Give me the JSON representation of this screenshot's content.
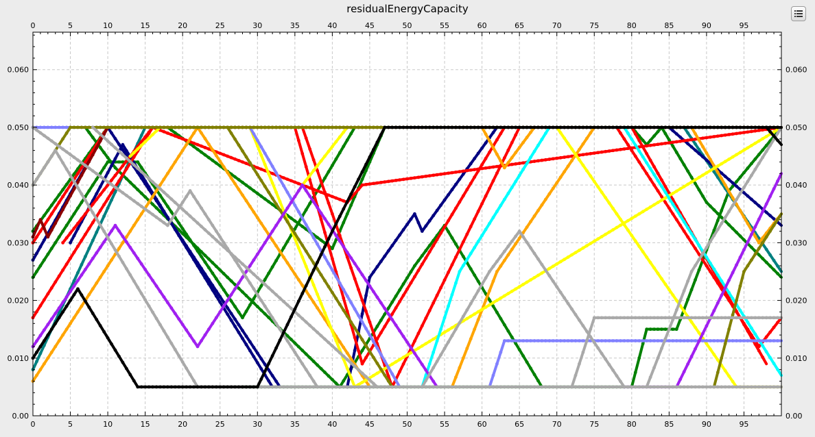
{
  "chart_data": {
    "type": "line",
    "title": "residualEnergyCapacity",
    "xlabel": "",
    "ylabel": "",
    "xlim": [
      0,
      100
    ],
    "ylim": [
      0,
      0.0665
    ],
    "x_ticks": [
      "0",
      "5",
      "10",
      "15",
      "20",
      "25",
      "30",
      "35",
      "40",
      "45",
      "50",
      "55",
      "60",
      "65",
      "70",
      "75",
      "80",
      "85",
      "90",
      "95"
    ],
    "y_ticks": [
      "0.00",
      "0.010",
      "0.020",
      "0.030",
      "0.040",
      "0.050",
      "0.060"
    ],
    "grid": true,
    "legend": "none",
    "series": [
      {
        "color": "#008000",
        "x": [
          0,
          10,
          100
        ],
        "y": [
          0.032,
          0.05,
          0.05
        ]
      },
      {
        "color": "#008000",
        "x": [
          0,
          10,
          14,
          28,
          43,
          100
        ],
        "y": [
          0.024,
          0.044,
          0.044,
          0.017,
          0.05,
          0.05
        ]
      },
      {
        "color": "#008000",
        "x": [
          7,
          11,
          41,
          51,
          55,
          68
        ],
        "y": [
          0.05,
          0.043,
          0.005,
          0.026,
          0.033,
          0.005
        ]
      },
      {
        "color": "#008000",
        "x": [
          12,
          18,
          40,
          47,
          100
        ],
        "y": [
          0.05,
          0.05,
          0.029,
          0.05,
          0.05
        ]
      },
      {
        "color": "#008000",
        "x": [
          28,
          75,
          80,
          82,
          86,
          93,
          100
        ],
        "y": [
          0.005,
          0.005,
          0.005,
          0.015,
          0.015,
          0.039,
          0.05
        ]
      },
      {
        "color": "#008000",
        "x": [
          80,
          82,
          84,
          90,
          100
        ],
        "y": [
          0.05,
          0.047,
          0.05,
          0.037,
          0.024
        ]
      },
      {
        "color": "#008080",
        "x": [
          0,
          15,
          17,
          100
        ],
        "y": [
          0.008,
          0.05,
          0.05,
          0.05
        ]
      },
      {
        "color": "#008080",
        "x": [
          84,
          87,
          100
        ],
        "y": [
          0.05,
          0.05,
          0.025
        ]
      },
      {
        "color": "#000080",
        "x": [
          0,
          10,
          33
        ],
        "y": [
          0.027,
          0.05,
          0.005
        ]
      },
      {
        "color": "#000080",
        "x": [
          5,
          12,
          32
        ],
        "y": [
          0.03,
          0.047,
          0.005
        ]
      },
      {
        "color": "#000080",
        "x": [
          42,
          45,
          51,
          52,
          62,
          100
        ],
        "y": [
          0.005,
          0.024,
          0.035,
          0.032,
          0.05,
          0.05
        ]
      },
      {
        "color": "#000080",
        "x": [
          85,
          100
        ],
        "y": [
          0.05,
          0.033
        ]
      },
      {
        "color": "#ff0000",
        "x": [
          0,
          16,
          42,
          44,
          100
        ],
        "y": [
          0.017,
          0.05,
          0.037,
          0.04,
          0.05
        ]
      },
      {
        "color": "#ff0000",
        "x": [
          4,
          16,
          100
        ],
        "y": [
          0.03,
          0.05,
          0.05
        ]
      },
      {
        "color": "#ff0000",
        "x": [
          0,
          10,
          20,
          36,
          100
        ],
        "y": [
          0.03,
          0.05,
          0.05,
          0.05,
          0.05
        ]
      },
      {
        "color": "#ff0000",
        "x": [
          36,
          48,
          65,
          100
        ],
        "y": [
          0.05,
          0.005,
          0.05,
          0.05
        ]
      },
      {
        "color": "#ff0000",
        "x": [
          35,
          44,
          63,
          100
        ],
        "y": [
          0.05,
          0.009,
          0.05,
          0.05
        ]
      },
      {
        "color": "#ff0000",
        "x": [
          78,
          97,
          100
        ],
        "y": [
          0.05,
          0.012,
          0.017
        ]
      },
      {
        "color": "#ff0000",
        "x": [
          80,
          98
        ],
        "y": [
          0.05,
          0.009
        ]
      },
      {
        "color": "#ffa500",
        "x": [
          0,
          22,
          100
        ],
        "y": [
          0.006,
          0.05,
          0.05
        ]
      },
      {
        "color": "#ffa500",
        "x": [
          22,
          45
        ],
        "y": [
          0.05,
          0.005
        ]
      },
      {
        "color": "#ffa500",
        "x": [
          56,
          62,
          75,
          100
        ],
        "y": [
          0.005,
          0.025,
          0.05,
          0.05
        ]
      },
      {
        "color": "#ffa500",
        "x": [
          60,
          63,
          67,
          100
        ],
        "y": [
          0.05,
          0.043,
          0.05,
          0.05
        ]
      },
      {
        "color": "#ffa500",
        "x": [
          80,
          88,
          97,
          100
        ],
        "y": [
          0.05,
          0.05,
          0.03,
          0.035
        ]
      },
      {
        "color": "#ffff00",
        "x": [
          13,
          17,
          100
        ],
        "y": [
          0.045,
          0.05,
          0.05
        ]
      },
      {
        "color": "#ffff00",
        "x": [
          29,
          43,
          100
        ],
        "y": [
          0.05,
          0.005,
          0.05
        ]
      },
      {
        "color": "#ffff00",
        "x": [
          36,
          42,
          100
        ],
        "y": [
          0.04,
          0.05,
          0.05
        ]
      },
      {
        "color": "#ffff00",
        "x": [
          70,
          94,
          100
        ],
        "y": [
          0.05,
          0.005,
          0.005
        ]
      },
      {
        "color": "#00ffff",
        "x": [
          52,
          57,
          69,
          100
        ],
        "y": [
          0.005,
          0.025,
          0.05,
          0.05
        ]
      },
      {
        "color": "#00ffff",
        "x": [
          79,
          100
        ],
        "y": [
          0.05,
          0.007
        ]
      },
      {
        "color": "#8080ff",
        "x": [
          0,
          15,
          19,
          100
        ],
        "y": [
          0.05,
          0.05,
          0.05,
          0.05
        ]
      },
      {
        "color": "#8080ff",
        "x": [
          29,
          49
        ],
        "y": [
          0.05,
          0.005
        ]
      },
      {
        "color": "#8080ff",
        "x": [
          61,
          63,
          100
        ],
        "y": [
          0.005,
          0.013,
          0.013
        ]
      },
      {
        "color": "#8b0000",
        "x": [
          0,
          1,
          2,
          10,
          100
        ],
        "y": [
          0.031,
          0.034,
          0.031,
          0.05,
          0.05
        ]
      },
      {
        "color": "#8b0000",
        "x": [
          57,
          100
        ],
        "y": [
          0.05,
          0.05
        ]
      },
      {
        "color": "#808000",
        "x": [
          0,
          5,
          100
        ],
        "y": [
          0.04,
          0.05,
          0.05
        ]
      },
      {
        "color": "#808000",
        "x": [
          26,
          48
        ],
        "y": [
          0.05,
          0.005
        ]
      },
      {
        "color": "#808000",
        "x": [
          91,
          95,
          100
        ],
        "y": [
          0.005,
          0.025,
          0.035
        ]
      },
      {
        "color": "#a020f0",
        "x": [
          0,
          11,
          22,
          36,
          54
        ],
        "y": [
          0.012,
          0.033,
          0.012,
          0.04,
          0.005
        ]
      },
      {
        "color": "#a020f0",
        "x": [
          79,
          86,
          100
        ],
        "y": [
          0.005,
          0.005,
          0.042
        ]
      },
      {
        "color": "#a9a9a9",
        "x": [
          0,
          3,
          22
        ],
        "y": [
          0.04,
          0.046,
          0.005
        ]
      },
      {
        "color": "#a9a9a9",
        "x": [
          0,
          18,
          21,
          38
        ],
        "y": [
          0.05,
          0.033,
          0.039,
          0.005
        ]
      },
      {
        "color": "#a9a9a9",
        "x": [
          8,
          46
        ],
        "y": [
          0.05,
          0.005
        ]
      },
      {
        "color": "#a9a9a9",
        "x": [
          22,
          100
        ],
        "y": [
          0.005,
          0.005
        ]
      },
      {
        "color": "#a9a9a9",
        "x": [
          52,
          61,
          65,
          79
        ],
        "y": [
          0.005,
          0.025,
          0.032,
          0.005
        ]
      },
      {
        "color": "#a9a9a9",
        "x": [
          72,
          75,
          100
        ],
        "y": [
          0.005,
          0.017,
          0.017
        ]
      },
      {
        "color": "#a9a9a9",
        "x": [
          82,
          88,
          100
        ],
        "y": [
          0.005,
          0.025,
          0.05
        ]
      },
      {
        "color": "#000000",
        "x": [
          0,
          6,
          14,
          29,
          30,
          40,
          47,
          100
        ],
        "y": [
          0.01,
          0.022,
          0.005,
          0.005,
          0.005,
          0.032,
          0.05,
          0.05
        ]
      },
      {
        "color": "#000000",
        "x": [
          98,
          100
        ],
        "y": [
          0.05,
          0.047
        ]
      }
    ]
  }
}
